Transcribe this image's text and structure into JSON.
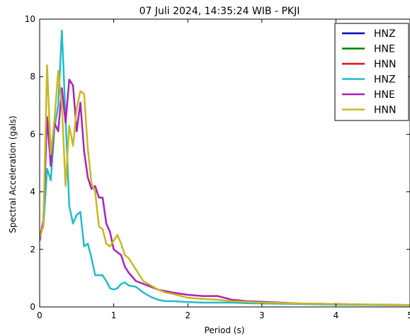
{
  "chart_data": {
    "type": "line",
    "title": "07 Juli 2024, 14:35:24 WIB - PKJI",
    "xlabel": "Period (s)",
    "ylabel": "Spectral Acceleration (gals)",
    "xlim": [
      0,
      5
    ],
    "ylim": [
      0,
      10
    ],
    "xticks": [
      "0",
      "1",
      "2",
      "3",
      "4",
      "5"
    ],
    "yticks": [
      "0",
      "2",
      "4",
      "6",
      "8",
      "10"
    ],
    "grid": false,
    "legend_position": "top-right",
    "series": [
      {
        "name": "HNZ",
        "color": "#0000bf",
        "x": [],
        "y": []
      },
      {
        "name": "HNE",
        "color": "#008000",
        "x": [],
        "y": []
      },
      {
        "name": "HNN",
        "color": "#dd1111",
        "x": [],
        "y": []
      },
      {
        "name": "HNZ",
        "color": "#22bbcc",
        "x": [
          0,
          0.05,
          0.1,
          0.15,
          0.2,
          0.25,
          0.3,
          0.35,
          0.4,
          0.45,
          0.5,
          0.55,
          0.6,
          0.65,
          0.7,
          0.75,
          0.8,
          0.85,
          0.9,
          0.95,
          1.0,
          1.05,
          1.1,
          1.15,
          1.2,
          1.3,
          1.4,
          1.5,
          1.6,
          1.7,
          1.8,
          2.0,
          2.2,
          2.4,
          2.6,
          2.8,
          3.0,
          3.5,
          4.0,
          4.5,
          5.0
        ],
        "y": [
          2.5,
          2.8,
          4.8,
          4.4,
          6.2,
          7.0,
          9.6,
          6.6,
          3.5,
          2.9,
          3.2,
          3.3,
          2.1,
          2.2,
          1.7,
          1.1,
          1.1,
          1.1,
          0.9,
          0.65,
          0.6,
          0.65,
          0.8,
          0.85,
          0.75,
          0.7,
          0.5,
          0.35,
          0.25,
          0.2,
          0.2,
          0.17,
          0.15,
          0.15,
          0.15,
          0.13,
          0.12,
          0.1,
          0.08,
          0.07,
          0.06
        ]
      },
      {
        "name": "HNE",
        "color": "#aa22bb",
        "x": [
          0,
          0.05,
          0.1,
          0.15,
          0.2,
          0.25,
          0.3,
          0.35,
          0.4,
          0.45,
          0.5,
          0.55,
          0.6,
          0.65,
          0.7,
          0.75,
          0.8,
          0.85,
          0.9,
          0.95,
          1.0,
          1.05,
          1.1,
          1.15,
          1.2,
          1.3,
          1.4,
          1.5,
          1.6,
          1.7,
          1.8,
          2.0,
          2.2,
          2.4,
          2.6,
          2.8,
          3.0,
          3.5,
          4.0,
          4.5,
          5.0
        ],
        "y": [
          2.3,
          3.0,
          6.6,
          4.9,
          6.4,
          6.1,
          7.6,
          6.4,
          7.9,
          7.7,
          6.1,
          7.1,
          5.4,
          4.5,
          4.1,
          4.2,
          3.8,
          3.8,
          2.9,
          2.6,
          2.0,
          1.9,
          1.8,
          1.4,
          1.2,
          0.9,
          0.8,
          0.7,
          0.6,
          0.55,
          0.5,
          0.42,
          0.38,
          0.38,
          0.25,
          0.2,
          0.18,
          0.12,
          0.1,
          0.08,
          0.07
        ]
      },
      {
        "name": "HNN",
        "color": "#c8b822",
        "x": [
          0,
          0.05,
          0.1,
          0.15,
          0.2,
          0.25,
          0.3,
          0.35,
          0.4,
          0.45,
          0.5,
          0.55,
          0.6,
          0.65,
          0.7,
          0.75,
          0.8,
          0.85,
          0.9,
          0.95,
          1.0,
          1.05,
          1.1,
          1.15,
          1.2,
          1.3,
          1.4,
          1.5,
          1.6,
          1.7,
          1.8,
          2.0,
          2.2,
          2.4,
          2.6,
          2.8,
          3.0,
          3.5,
          4.0,
          4.5,
          5.0
        ],
        "y": [
          2.4,
          2.8,
          8.4,
          5.3,
          6.5,
          8.2,
          7.0,
          4.2,
          6.3,
          5.6,
          6.9,
          7.5,
          7.4,
          5.5,
          4.3,
          4.0,
          2.8,
          2.7,
          2.2,
          2.1,
          2.3,
          2.5,
          2.2,
          1.8,
          1.7,
          1.3,
          0.9,
          0.75,
          0.6,
          0.5,
          0.45,
          0.32,
          0.28,
          0.25,
          0.2,
          0.18,
          0.15,
          0.12,
          0.1,
          0.08,
          0.07
        ]
      }
    ]
  }
}
